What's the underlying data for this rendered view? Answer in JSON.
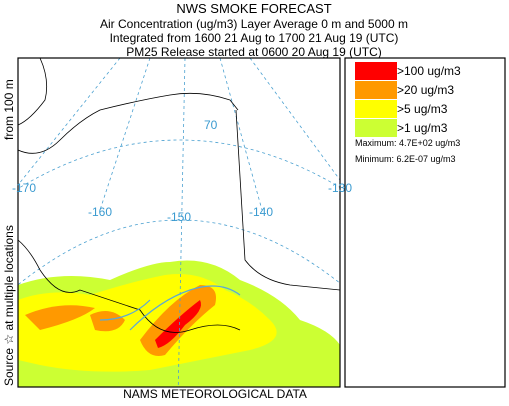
{
  "header": {
    "title": "NWS SMOKE FORECAST",
    "lines": [
      "Air Concentration (ug/m3) Layer Average    0 m and  5000 m",
      "Integrated from 1600 21 Aug to 1700 21 Aug 19 (UTC)",
      "PM25 Release started at 0600 20 Aug 19 (UTC)"
    ]
  },
  "side_label": [
    "Source ☆ at multiple locations",
    "from   100 m"
  ],
  "footer": "NAMS METEOROLOGICAL DATA",
  "legend": {
    "items": [
      {
        "label": ">100 ug/m3",
        "color": "#ff0000"
      },
      {
        "label": ">20 ug/m3",
        "color": "#ff9900"
      },
      {
        "label": ">5 ug/m3",
        "color": "#ffff00"
      },
      {
        "label": ">1 ug/m3",
        "color": "#ccff33"
      }
    ],
    "maximum": "Maximum: 4.7E+02 ug/m3",
    "minimum": "Minimum: 6.2E-07 ug/m3"
  },
  "map": {
    "labels": [
      "-170",
      "-160",
      "-150",
      "-140",
      "-130",
      "70"
    ]
  }
}
